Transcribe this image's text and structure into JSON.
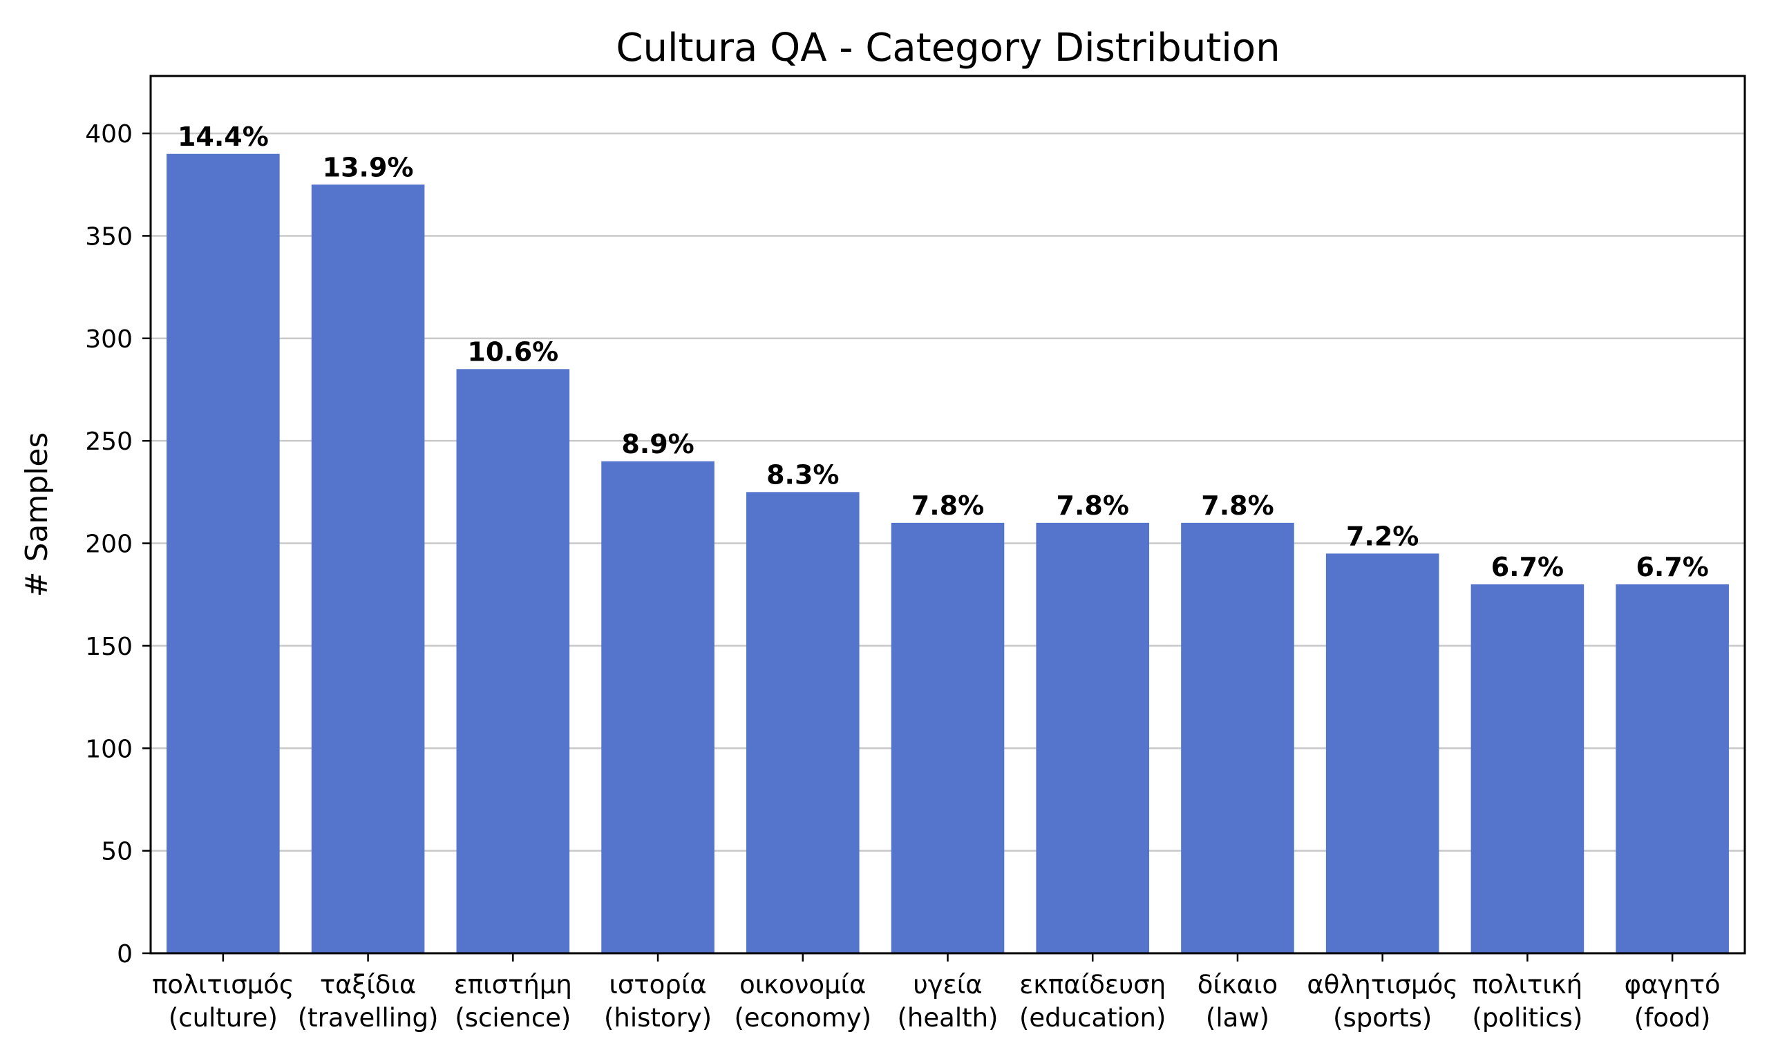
{
  "chart_data": {
    "type": "bar",
    "title": "Cultura QA - Category Distribution",
    "xlabel": "",
    "ylabel": "# Samples",
    "ylim": [
      0,
      428
    ],
    "yticks": [
      0,
      50,
      100,
      150,
      200,
      250,
      300,
      350,
      400
    ],
    "grid": "horizontal",
    "bar_color": "#5574cc",
    "categories": [
      [
        "πολιτισμός",
        "(culture)"
      ],
      [
        "ταξίδια",
        "(travelling)"
      ],
      [
        "επιστήμη",
        "(science)"
      ],
      [
        "ιστορία",
        "(history)"
      ],
      [
        "οικονομία",
        "(economy)"
      ],
      [
        "υγεία",
        "(health)"
      ],
      [
        "εκπαίδευση",
        "(education)"
      ],
      [
        "δίκαιο",
        "(law)"
      ],
      [
        "αθλητισμός",
        "(sports)"
      ],
      [
        "πολιτική",
        "(politics)"
      ],
      [
        "φαγητό",
        "(food)"
      ]
    ],
    "values": [
      390,
      375,
      285,
      240,
      225,
      210,
      210,
      210,
      195,
      180,
      180
    ],
    "labels": [
      "14.4%",
      "13.9%",
      "10.6%",
      "8.9%",
      "8.3%",
      "7.8%",
      "7.8%",
      "7.8%",
      "7.2%",
      "6.7%",
      "6.7%"
    ]
  }
}
